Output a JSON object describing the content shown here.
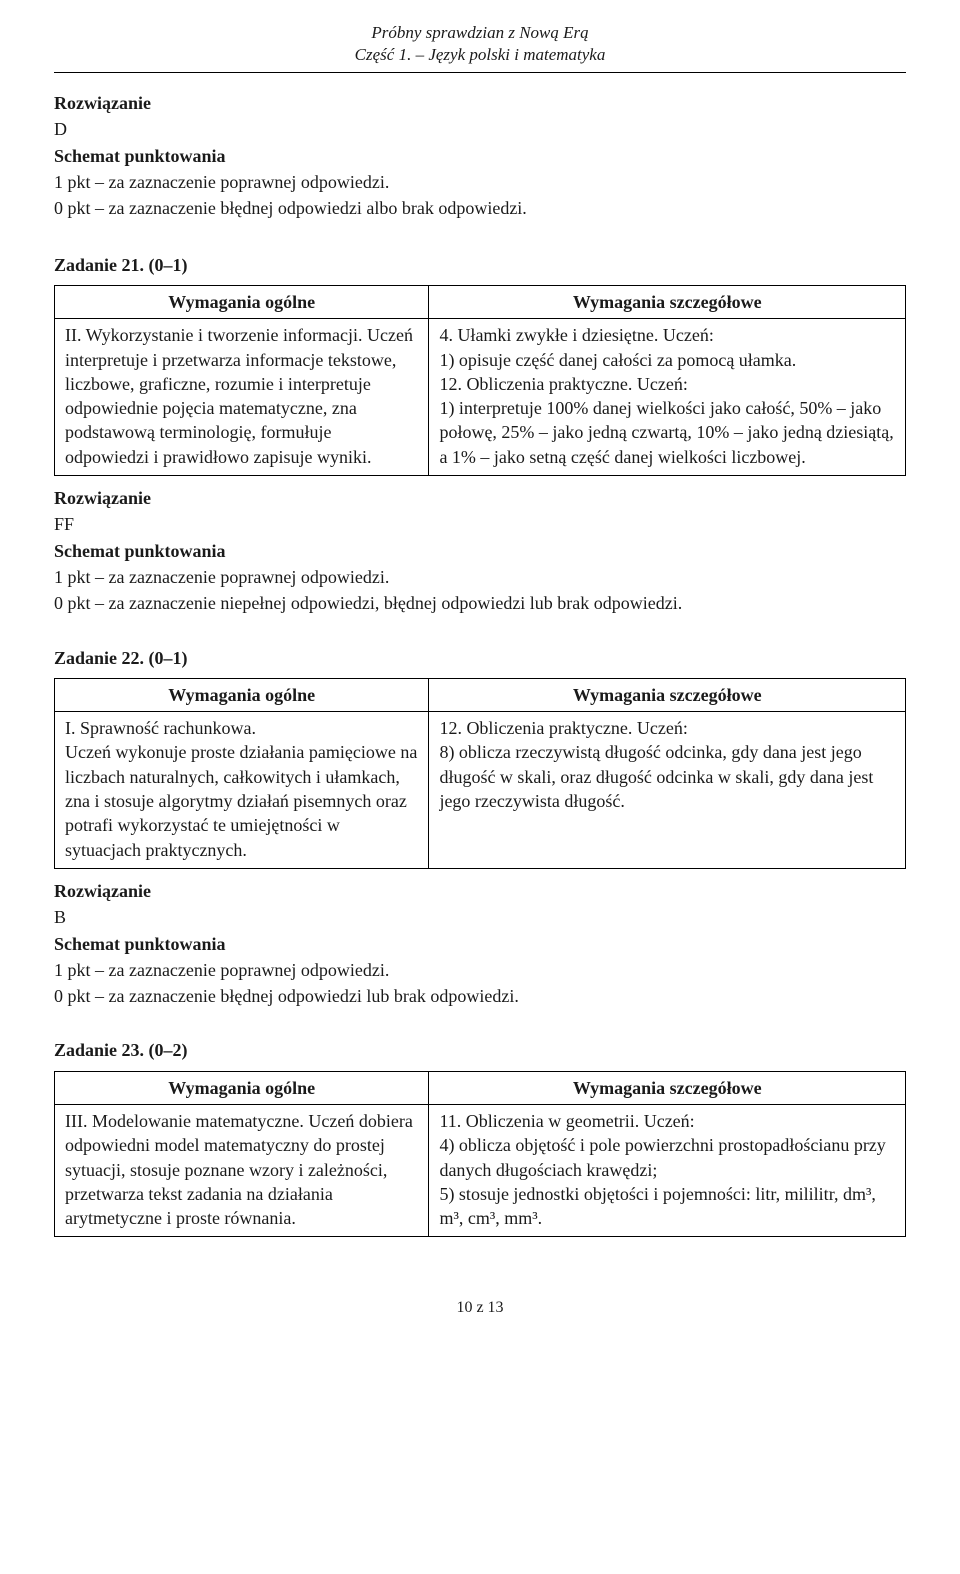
{
  "header": {
    "line1": "Próbny sprawdzian z Nową Erą",
    "line2": "Część 1. – Język polski i matematyka"
  },
  "intro": {
    "rozw_label": "Rozwiązanie",
    "rozw_value": "D",
    "schema_label": "Schemat punktowania",
    "pt1": "1 pkt – za zaznaczenie poprawnej odpowiedzi.",
    "pt0": "0 pkt – za zaznaczenie błędnej odpowiedzi albo brak odpowiedzi."
  },
  "table_headers": {
    "left": "Wymagania ogólne",
    "right": "Wymagania szczegółowe"
  },
  "task21": {
    "title": "Zadanie 21. (0–1)",
    "left": "II. Wykorzystanie i tworzenie informacji. Uczeń interpretuje i przetwarza informacje tekstowe, liczbowe, graficzne, rozumie i interpretuje odpowiednie pojęcia matematyczne, zna podstawową terminologię, formułuje odpowiedzi i prawidłowo zapisuje wyniki.",
    "right": "4. Ułamki zwykłe i dziesiętne. Uczeń:\n1) opisuje część danej całości za pomocą ułamka.\n12. Obliczenia praktyczne. Uczeń:\n1) interpretuje 100% danej wielkości jako całość, 50% – jako połowę, 25% – jako jedną czwartą, 10% – jako jedną dziesiątą, a 1% – jako setną część danej wielkości liczbowej.",
    "rozw_label": "Rozwiązanie",
    "rozw_value": "FF",
    "schema_label": "Schemat punktowania",
    "pt1": "1 pkt – za zaznaczenie poprawnej odpowiedzi.",
    "pt0": "0 pkt – za zaznaczenie niepełnej odpowiedzi, błędnej odpowiedzi lub brak odpowiedzi."
  },
  "task22": {
    "title": "Zadanie 22. (0–1)",
    "left": "I. Sprawność rachunkowa.\nUczeń wykonuje proste działania pamięciowe na liczbach naturalnych, całkowitych i ułamkach, zna i stosuje algorytmy działań pisemnych oraz potrafi wykorzystać te umiejętności w sytuacjach praktycznych.",
    "right": "12. Obliczenia praktyczne. Uczeń:\n8) oblicza rzeczywistą długość odcinka, gdy dana jest jego długość w skali, oraz długość odcinka w skali, gdy dana jest jego rzeczywista długość.",
    "rozw_label": "Rozwiązanie",
    "rozw_value": "B",
    "schema_label": "Schemat punktowania",
    "pt1": "1 pkt – za zaznaczenie poprawnej odpowiedzi.",
    "pt0": "0 pkt – za zaznaczenie błędnej odpowiedzi lub brak odpowiedzi."
  },
  "task23": {
    "title": "Zadanie 23. (0–2)",
    "left": "III. Modelowanie matematyczne. Uczeń dobiera odpowiedni model matematyczny do prostej sytuacji, stosuje poznane wzory i zależności, przetwarza tekst zadania na działania arytmetyczne i proste równania.",
    "right": "11. Obliczenia w geometrii. Uczeń:\n4) oblicza objętość i pole powierzchni prostopadłościanu przy danych długościach krawędzi;\n5) stosuje jednostki objętości i pojemności: litr, mililitr, dm³, m³, cm³, mm³."
  },
  "footer": {
    "pageinfo": "10 z 13"
  }
}
